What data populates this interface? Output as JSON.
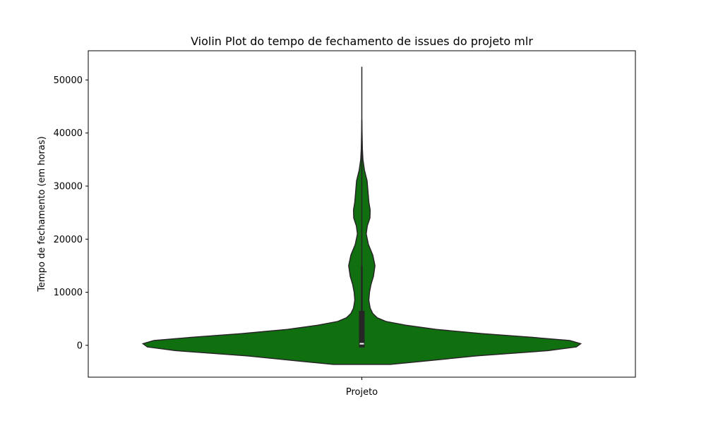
{
  "chart_data": {
    "type": "violin",
    "title": "Violin Plot do tempo de fechamento de issues do projeto mlr",
    "xlabel": "Projeto",
    "ylabel": "Tempo de fechamento (em horas)",
    "ylim": [
      -6000,
      55500
    ],
    "yticks": [
      0,
      10000,
      20000,
      30000,
      40000,
      50000
    ],
    "grid": false,
    "categories": [
      "Projeto"
    ],
    "colors": {
      "fill": "#107010",
      "edge": "#262626",
      "box": "#262626",
      "median": "#ffffff"
    },
    "density": [
      [
        -3600,
        0.13
      ],
      [
        -3000,
        0.28
      ],
      [
        -2000,
        0.52
      ],
      [
        -1000,
        0.85
      ],
      [
        -300,
        0.98
      ],
      [
        300,
        1.0
      ],
      [
        900,
        0.95
      ],
      [
        1500,
        0.78
      ],
      [
        2200,
        0.55
      ],
      [
        3000,
        0.34
      ],
      [
        3800,
        0.2
      ],
      [
        4500,
        0.11
      ],
      [
        5200,
        0.07
      ],
      [
        6000,
        0.05
      ],
      [
        7000,
        0.038
      ],
      [
        8500,
        0.032
      ],
      [
        10000,
        0.035
      ],
      [
        11500,
        0.042
      ],
      [
        13000,
        0.053
      ],
      [
        15000,
        0.06
      ],
      [
        17000,
        0.05
      ],
      [
        19000,
        0.03
      ],
      [
        21000,
        0.02
      ],
      [
        22500,
        0.025
      ],
      [
        24000,
        0.037
      ],
      [
        25500,
        0.038
      ],
      [
        27000,
        0.032
      ],
      [
        29000,
        0.028
      ],
      [
        31000,
        0.024
      ],
      [
        33000,
        0.012
      ],
      [
        35000,
        0.005
      ],
      [
        37000,
        0.0025
      ],
      [
        40000,
        0.001
      ],
      [
        42500,
        0
      ]
    ],
    "box": {
      "q1": 0,
      "median": 300,
      "q3": 6500,
      "whisker_low": -300,
      "whisker_high": 15000,
      "max": 52500
    }
  }
}
